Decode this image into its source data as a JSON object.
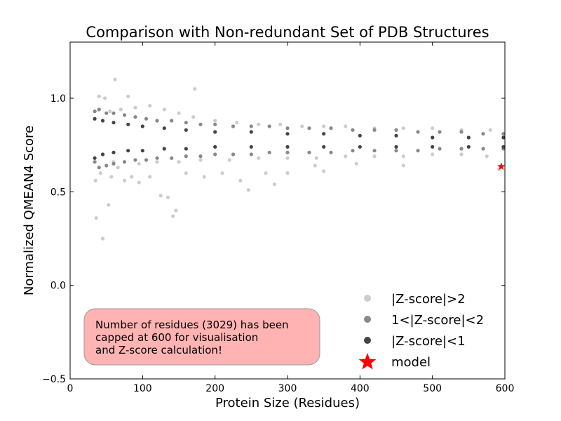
{
  "chart_data": {
    "type": "scatter",
    "title": "Comparison with Non-redundant Set of PDB Structures",
    "xlabel": "Protein Size (Residues)",
    "ylabel": "Normalized QMEAN4 Score",
    "xlim": [
      0,
      600
    ],
    "ylim": [
      -0.5,
      1.3
    ],
    "xticks": [
      0,
      100,
      200,
      300,
      400,
      500,
      600
    ],
    "yticks": [
      -0.5,
      0.0,
      0.5,
      1.0
    ],
    "xtick_labels": [
      "0",
      "100",
      "200",
      "300",
      "400",
      "500",
      "600"
    ],
    "ytick_labels": [
      "−0.5",
      "0.0",
      "0.5",
      "1.0"
    ],
    "grid": false,
    "legend_position": "bottom-right",
    "series": [
      {
        "name": "|Z-score|>2",
        "color": "#cccccc",
        "points": [
          [
            36,
            0.36
          ],
          [
            45,
            0.25
          ],
          [
            53,
            0.43
          ],
          [
            48,
            1.0
          ],
          [
            40,
            1.01
          ],
          [
            62,
            1.1
          ],
          [
            80,
            1.01
          ],
          [
            172,
            1.05
          ],
          [
            35,
            0.56
          ],
          [
            42,
            0.6
          ],
          [
            57,
            0.58
          ],
          [
            60,
            0.66
          ],
          [
            75,
            0.56
          ],
          [
            85,
            0.58
          ],
          [
            95,
            0.55
          ],
          [
            110,
            0.58
          ],
          [
            125,
            0.48
          ],
          [
            135,
            0.47
          ],
          [
            142,
            0.37
          ],
          [
            146,
            0.4
          ],
          [
            160,
            0.6
          ],
          [
            185,
            0.58
          ],
          [
            210,
            0.6
          ],
          [
            235,
            0.56
          ],
          [
            246,
            0.51
          ],
          [
            270,
            0.6
          ],
          [
            282,
            0.54
          ],
          [
            300,
            0.6
          ],
          [
            338,
            0.64
          ],
          [
            350,
            0.61
          ],
          [
            395,
            0.65
          ],
          [
            460,
            0.64
          ],
          [
            592,
            0.62
          ],
          [
            55,
            0.93
          ],
          [
            70,
            0.94
          ],
          [
            90,
            0.95
          ],
          [
            110,
            0.96
          ],
          [
            130,
            0.94
          ],
          [
            150,
            0.92
          ],
          [
            170,
            0.9
          ],
          [
            200,
            0.88
          ],
          [
            230,
            0.87
          ],
          [
            260,
            0.86
          ],
          [
            290,
            0.86
          ],
          [
            320,
            0.85
          ],
          [
            350,
            0.85
          ],
          [
            380,
            0.85
          ],
          [
            420,
            0.84
          ],
          [
            460,
            0.84
          ],
          [
            500,
            0.84
          ],
          [
            540,
            0.83
          ],
          [
            580,
            0.83
          ],
          [
            66,
            0.63
          ],
          [
            95,
            0.65
          ],
          [
            120,
            0.66
          ],
          [
            150,
            0.66
          ],
          [
            180,
            0.67
          ],
          [
            220,
            0.67
          ],
          [
            260,
            0.68
          ],
          [
            300,
            0.68
          ],
          [
            340,
            0.68
          ],
          [
            380,
            0.69
          ],
          [
            420,
            0.69
          ],
          [
            460,
            0.69
          ],
          [
            500,
            0.7
          ],
          [
            540,
            0.7
          ],
          [
            575,
            0.69
          ]
        ]
      },
      {
        "name": "1<|Z-score|<2",
        "color": "#888888",
        "points": [
          [
            34,
            0.93
          ],
          [
            34,
            0.66
          ],
          [
            40,
            0.94
          ],
          [
            40,
            0.63
          ],
          [
            50,
            0.92
          ],
          [
            50,
            0.64
          ],
          [
            60,
            0.92
          ],
          [
            60,
            0.65
          ],
          [
            75,
            0.91
          ],
          [
            75,
            0.66
          ],
          [
            90,
            0.9
          ],
          [
            90,
            0.67
          ],
          [
            105,
            0.89
          ],
          [
            105,
            0.67
          ],
          [
            120,
            0.88
          ],
          [
            120,
            0.68
          ],
          [
            140,
            0.88
          ],
          [
            140,
            0.68
          ],
          [
            160,
            0.87
          ],
          [
            160,
            0.69
          ],
          [
            180,
            0.86
          ],
          [
            180,
            0.69
          ],
          [
            200,
            0.86
          ],
          [
            200,
            0.7
          ],
          [
            225,
            0.85
          ],
          [
            225,
            0.7
          ],
          [
            250,
            0.85
          ],
          [
            250,
            0.7
          ],
          [
            275,
            0.85
          ],
          [
            275,
            0.71
          ],
          [
            300,
            0.84
          ],
          [
            300,
            0.71
          ],
          [
            330,
            0.84
          ],
          [
            330,
            0.71
          ],
          [
            360,
            0.84
          ],
          [
            360,
            0.71
          ],
          [
            390,
            0.83
          ],
          [
            390,
            0.72
          ],
          [
            420,
            0.83
          ],
          [
            420,
            0.72
          ],
          [
            450,
            0.83
          ],
          [
            450,
            0.72
          ],
          [
            480,
            0.82
          ],
          [
            480,
            0.72
          ],
          [
            510,
            0.82
          ],
          [
            510,
            0.73
          ],
          [
            540,
            0.82
          ],
          [
            540,
            0.73
          ],
          [
            570,
            0.81
          ],
          [
            570,
            0.73
          ],
          [
            598,
            0.81
          ],
          [
            598,
            0.73
          ]
        ]
      },
      {
        "name": "|Z-score|<1",
        "color": "#444444",
        "points": [
          [
            34,
            0.89
          ],
          [
            34,
            0.68
          ],
          [
            45,
            0.88
          ],
          [
            45,
            0.7
          ],
          [
            60,
            0.87
          ],
          [
            60,
            0.71
          ],
          [
            80,
            0.86
          ],
          [
            80,
            0.72
          ],
          [
            100,
            0.85
          ],
          [
            100,
            0.72
          ],
          [
            130,
            0.84
          ],
          [
            130,
            0.73
          ],
          [
            160,
            0.83
          ],
          [
            160,
            0.73
          ],
          [
            200,
            0.82
          ],
          [
            200,
            0.74
          ],
          [
            250,
            0.82
          ],
          [
            250,
            0.74
          ],
          [
            300,
            0.81
          ],
          [
            300,
            0.74
          ],
          [
            350,
            0.81
          ],
          [
            350,
            0.74
          ],
          [
            400,
            0.8
          ],
          [
            400,
            0.74
          ],
          [
            450,
            0.8
          ],
          [
            450,
            0.74
          ],
          [
            500,
            0.79
          ],
          [
            500,
            0.74
          ],
          [
            550,
            0.79
          ],
          [
            550,
            0.74
          ],
          [
            598,
            0.79
          ],
          [
            598,
            0.74
          ]
        ]
      }
    ],
    "model": {
      "name": "model",
      "x": 595,
      "y": 0.635,
      "color": "#ff0000"
    },
    "annotation": "Number of residues (3029) has been capped at 600 for visualisation and Z-score calculation!"
  },
  "annotation_lines": [
    "Number of residues (3029) has been",
    "capped at 600 for visualisation",
    "and Z-score calculation!"
  ]
}
